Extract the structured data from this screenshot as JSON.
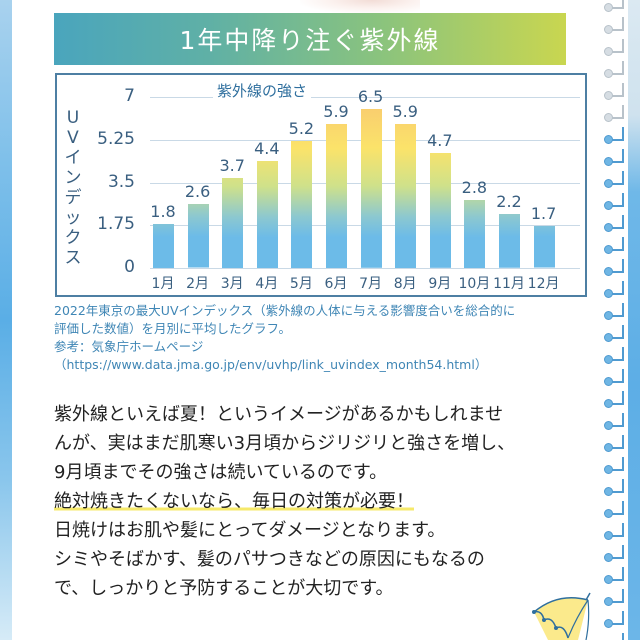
{
  "title": "1年中降り注ぐ紫外線",
  "chart_data": {
    "type": "bar",
    "title": "紫外線の強さ",
    "xlabel": "",
    "ylabel": "UVインデックス",
    "categories": [
      "1月",
      "2月",
      "3月",
      "4月",
      "5月",
      "6月",
      "7月",
      "8月",
      "9月",
      "10月",
      "11月",
      "12月"
    ],
    "values": [
      1.8,
      2.6,
      3.7,
      4.4,
      5.2,
      5.9,
      6.5,
      5.9,
      4.7,
      2.8,
      2.2,
      1.7
    ],
    "value_labels": [
      "1.8",
      "2.6",
      "3.7",
      "4.4",
      "5.2",
      "5.9",
      "6.5",
      "5.9",
      "4.7",
      "2.8",
      "2.2",
      "1.7"
    ],
    "yticks": [
      "0",
      "1.75",
      "3.5",
      "5.25",
      "7"
    ],
    "ylim": [
      0,
      7
    ],
    "grid": true,
    "legend": "none",
    "colors": {
      "low": "#6cbbe8",
      "mid": "#fbe36a",
      "high": "#f8c870"
    }
  },
  "caption": {
    "line1": "2022年東京の最大UVインデックス（紫外線の人体に与える影響度合いを総合的に",
    "line2": "評価した数値）を月別に平均したグラフ。",
    "line3": "参考：気象庁ホームページ",
    "line4": "（https://www.data.jma.go.jp/env/uvhp/link_uvindex_month54.html）"
  },
  "body": {
    "line1": "紫外線といえば夏！というイメージがあるかもしれませ",
    "line2": "んが、実はまだ肌寒い3月頃からジリジリと強さを増し、",
    "line3": "9月頃までその強さは続いているのです。",
    "line4_highlight": "絶対焼きたくないなら、毎日の対策が必要！",
    "line5": "日焼けはお肌や髪にとってダメージとなります。",
    "line6": "シミやそばかす、髪のパサつきなどの原因にもなるの",
    "line7": "で、しっかりと予防することが大切です。"
  },
  "colors": {
    "banner_start": "#4aa5bd",
    "banner_end": "#c9d650",
    "chart_border": "#4d7fa3",
    "caption_text": "#3f86b5",
    "highlight": "#f6e96a"
  }
}
